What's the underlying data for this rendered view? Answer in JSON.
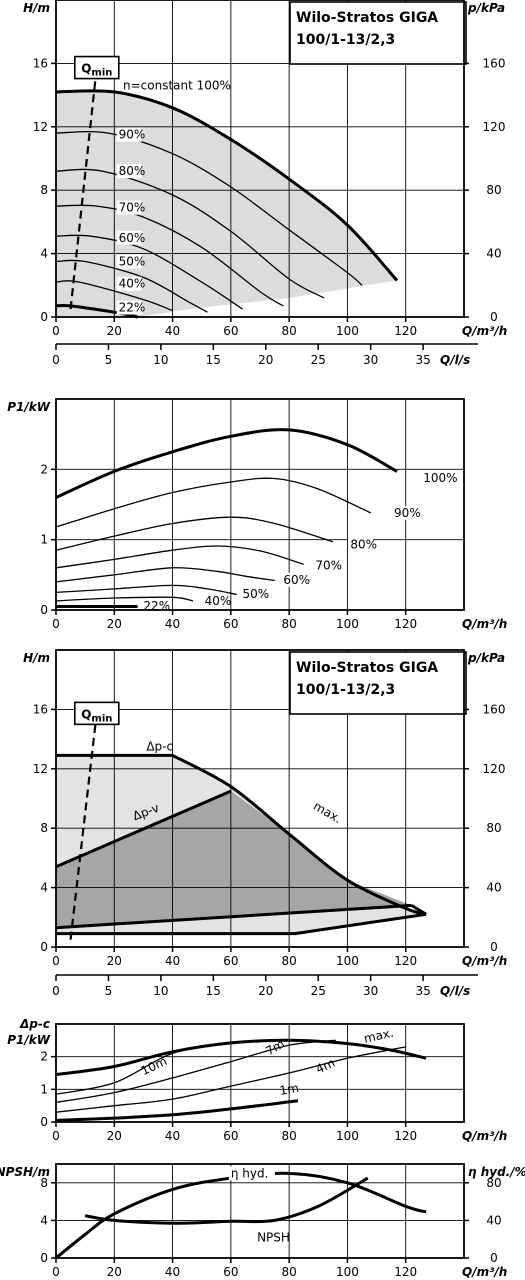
{
  "chart_data": [
    {
      "type": "line",
      "title": "Wilo-Stratos GIGA",
      "subtitle": "100/1-13/2,3",
      "xlabel": "Q/m³/h",
      "ylabel": "H/m",
      "y2label": "p/kPa",
      "xlim": [
        0,
        140
      ],
      "ylim": [
        0,
        20
      ],
      "y2lim": [
        0,
        200
      ],
      "xticks": [
        0,
        20,
        40,
        60,
        80,
        100,
        120
      ],
      "yticks": [
        0,
        4,
        8,
        12,
        16
      ],
      "y2ticks": [
        0,
        40,
        80,
        120,
        160
      ],
      "grid": true,
      "fill_region": "operating range",
      "qmin_label": "Qmin",
      "qmin_line": [
        [
          5,
          0.5
        ],
        [
          14,
          15.8
        ]
      ],
      "series": [
        {
          "name": "n=constant 100%",
          "label_at": [
            23,
            14.6
          ],
          "points": [
            [
              0,
              14.2
            ],
            [
              20,
              14.2
            ],
            [
              40,
              13.2
            ],
            [
              60,
              11.2
            ],
            [
              80,
              8.7
            ],
            [
              100,
              5.8
            ],
            [
              117,
              2.3
            ]
          ]
        },
        {
          "name": "90%",
          "label_at": [
            21.5,
            11.5
          ],
          "points": [
            [
              0,
              11.6
            ],
            [
              18,
              11.6
            ],
            [
              40,
              10.3
            ],
            [
              60,
              8.2
            ],
            [
              80,
              5.5
            ],
            [
              100,
              2.8
            ],
            [
              105,
              2.0
            ]
          ]
        },
        {
          "name": "80%",
          "label_at": [
            21.5,
            9.2
          ],
          "points": [
            [
              0,
              9.2
            ],
            [
              16,
              9.2
            ],
            [
              40,
              7.7
            ],
            [
              60,
              5.4
            ],
            [
              80,
              2.4
            ],
            [
              92,
              1.2
            ]
          ]
        },
        {
          "name": "70%",
          "label_at": [
            21.5,
            6.9
          ],
          "points": [
            [
              0,
              7.0
            ],
            [
              14,
              7.0
            ],
            [
              30,
              6.3
            ],
            [
              50,
              4.4
            ],
            [
              70,
              1.6
            ],
            [
              78,
              0.7
            ]
          ]
        },
        {
          "name": "60%",
          "label_at": [
            21.5,
            5.0
          ],
          "points": [
            [
              0,
              5.1
            ],
            [
              12,
              5.1
            ],
            [
              30,
              4.3
            ],
            [
              50,
              2.2
            ],
            [
              64,
              0.5
            ]
          ]
        },
        {
          "name": "50%",
          "label_at": [
            21.5,
            3.5
          ],
          "points": [
            [
              0,
              3.5
            ],
            [
              10,
              3.5
            ],
            [
              30,
              2.5
            ],
            [
              45,
              1.0
            ],
            [
              52,
              0.3
            ]
          ]
        },
        {
          "name": "40%",
          "label_at": [
            21.5,
            2.1
          ],
          "points": [
            [
              0,
              2.2
            ],
            [
              8,
              2.2
            ],
            [
              30,
              1.1
            ],
            [
              40,
              0.4
            ]
          ]
        },
        {
          "name": "22%",
          "label_at": [
            21.5,
            0.6
          ],
          "points": [
            [
              0,
              0.7
            ],
            [
              5,
              0.7
            ],
            [
              20,
              0.3
            ],
            [
              28,
              0.0
            ]
          ]
        }
      ]
    },
    {
      "type": "line",
      "xlabel": "Q/l/s",
      "xlim": [
        0,
        38.9
      ],
      "xticks": [
        0,
        5,
        10,
        15,
        20,
        25,
        30,
        35
      ]
    },
    {
      "type": "line",
      "ylabel": "P1/kW",
      "xlabel": "Q/m³/h",
      "xlim": [
        0,
        140
      ],
      "ylim": [
        0,
        3
      ],
      "xticks": [
        0,
        20,
        40,
        60,
        80,
        100,
        120
      ],
      "yticks": [
        0,
        1,
        2
      ],
      "grid": true,
      "series": [
        {
          "name": "100%",
          "label_at": [
            126,
            1.88
          ],
          "points": [
            [
              0,
              1.6
            ],
            [
              20,
              1.97
            ],
            [
              40,
              2.25
            ],
            [
              60,
              2.47
            ],
            [
              80,
              2.56
            ],
            [
              100,
              2.35
            ],
            [
              117,
              1.97
            ]
          ]
        },
        {
          "name": "90%",
          "label_at": [
            116,
            1.38
          ],
          "points": [
            [
              0,
              1.18
            ],
            [
              20,
              1.44
            ],
            [
              40,
              1.67
            ],
            [
              60,
              1.82
            ],
            [
              75,
              1.87
            ],
            [
              90,
              1.72
            ],
            [
              108,
              1.38
            ]
          ]
        },
        {
          "name": "80%",
          "label_at": [
            101,
            0.93
          ],
          "points": [
            [
              0,
              0.85
            ],
            [
              20,
              1.05
            ],
            [
              40,
              1.23
            ],
            [
              60,
              1.32
            ],
            [
              75,
              1.23
            ],
            [
              95,
              0.97
            ]
          ]
        },
        {
          "name": "70%",
          "label_at": [
            89,
            0.63
          ],
          "points": [
            [
              0,
              0.6
            ],
            [
              20,
              0.72
            ],
            [
              40,
              0.85
            ],
            [
              55,
              0.91
            ],
            [
              70,
              0.84
            ],
            [
              85,
              0.65
            ]
          ]
        },
        {
          "name": "60%",
          "label_at": [
            78,
            0.43
          ],
          "points": [
            [
              0,
              0.4
            ],
            [
              20,
              0.5
            ],
            [
              40,
              0.6
            ],
            [
              55,
              0.55
            ],
            [
              65,
              0.48
            ],
            [
              75,
              0.42
            ]
          ]
        },
        {
          "name": "50%",
          "label_at": [
            64,
            0.23
          ],
          "points": [
            [
              0,
              0.25
            ],
            [
              20,
              0.3
            ],
            [
              40,
              0.35
            ],
            [
              52,
              0.3
            ],
            [
              62,
              0.22
            ]
          ]
        },
        {
          "name": "40%",
          "label_at": [
            51,
            0.13
          ],
          "points": [
            [
              0,
              0.13
            ],
            [
              20,
              0.17
            ],
            [
              40,
              0.18
            ],
            [
              47,
              0.13
            ]
          ]
        },
        {
          "name": "22%",
          "label_at": [
            30,
            0.06
          ],
          "points": [
            [
              0,
              0.05
            ],
            [
              28,
              0.05
            ]
          ]
        }
      ]
    },
    {
      "type": "area",
      "title": "Wilo-Stratos GIGA",
      "subtitle": "100/1-13/2,3",
      "xlabel": "Q/m³/h",
      "ylabel": "H/m",
      "y2label": "p/kPa",
      "xlim": [
        0,
        140
      ],
      "ylim": [
        0,
        20
      ],
      "y2lim": [
        0,
        200
      ],
      "xticks": [
        0,
        20,
        40,
        60,
        80,
        100,
        120
      ],
      "yticks": [
        0,
        4,
        8,
        12,
        16
      ],
      "y2ticks": [
        0,
        40,
        80,
        120,
        160
      ],
      "grid": true,
      "regions": [
        "Δp-c range",
        "Δp-v range"
      ],
      "qmin_label": "Qmin",
      "qmin_line": [
        [
          5,
          0.5
        ],
        [
          14,
          15.8
        ]
      ],
      "curves": [
        {
          "name": "Δp-c",
          "label_at": [
            31,
            13.5
          ],
          "points": [
            [
              0,
              12.9
            ],
            [
              40,
              12.9
            ]
          ]
        },
        {
          "name": "Δp-v",
          "label_at": [
            27,
            8.8
          ],
          "points": [
            [
              0,
              5.4
            ],
            [
              60,
              10.5
            ]
          ]
        },
        {
          "name": "max.",
          "label_at": [
            88,
            9.6
          ],
          "points": [
            [
              40,
              12.9
            ],
            [
              60,
              10.8
            ],
            [
              80,
              7.6
            ],
            [
              100,
              4.5
            ],
            [
              120,
              2.6
            ],
            [
              127,
              2.2
            ]
          ]
        }
      ]
    },
    {
      "type": "line",
      "xlabel": "Q/l/s",
      "xlim": [
        0,
        38.9
      ],
      "xticks": [
        0,
        5,
        10,
        15,
        20,
        25,
        30,
        35
      ]
    },
    {
      "type": "line",
      "ylabel": "P1/kW",
      "ylabel_top": "Δp-c",
      "xlabel": "Q/m³/h",
      "xlim": [
        0,
        140
      ],
      "ylim": [
        0,
        3
      ],
      "xticks": [
        0,
        20,
        40,
        60,
        80,
        100,
        120
      ],
      "yticks": [
        0,
        1,
        2
      ],
      "grid": true,
      "series": [
        {
          "name": "max.",
          "label_at": [
            106,
            2.55
          ],
          "points": [
            [
              0,
              1.45
            ],
            [
              20,
              1.7
            ],
            [
              40,
              2.15
            ],
            [
              60,
              2.42
            ],
            [
              80,
              2.5
            ],
            [
              100,
              2.4
            ],
            [
              115,
              2.2
            ],
            [
              127,
              1.95
            ]
          ]
        },
        {
          "name": "10m",
          "label_at": [
            30,
            1.55
          ],
          "points": [
            [
              0,
              0.85
            ],
            [
              20,
              1.2
            ],
            [
              40,
              2.1
            ],
            [
              60,
              2.42
            ],
            [
              70,
              2.45
            ]
          ]
        },
        {
          "name": "7m",
          "label_at": [
            73,
            2.15
          ],
          "points": [
            [
              0,
              0.6
            ],
            [
              20,
              0.9
            ],
            [
              40,
              1.35
            ],
            [
              60,
              1.85
            ],
            [
              80,
              2.35
            ],
            [
              96,
              2.5
            ]
          ]
        },
        {
          "name": "4m",
          "label_at": [
            90,
            1.6
          ],
          "points": [
            [
              0,
              0.3
            ],
            [
              20,
              0.5
            ],
            [
              40,
              0.7
            ],
            [
              60,
              1.1
            ],
            [
              80,
              1.5
            ],
            [
              100,
              1.95
            ],
            [
              120,
              2.3
            ]
          ]
        },
        {
          "name": "1m",
          "label_at": [
            77,
            0.95
          ],
          "points": [
            [
              0,
              0.05
            ],
            [
              20,
              0.12
            ],
            [
              40,
              0.22
            ],
            [
              60,
              0.4
            ],
            [
              83,
              0.65
            ]
          ]
        }
      ]
    },
    {
      "type": "line",
      "ylabel": "NPSH/m",
      "y2label": "η hyd./%",
      "xlabel": "Q/m³/h",
      "xlim": [
        0,
        140
      ],
      "ylim": [
        0,
        10
      ],
      "y2lim": [
        0,
        100
      ],
      "xticks": [
        0,
        20,
        40,
        60,
        80,
        100,
        120
      ],
      "yticks": [
        0,
        4,
        8
      ],
      "y2ticks": [
        0,
        40,
        80
      ],
      "grid": true,
      "series": [
        {
          "name": "η hyd.",
          "label_at": [
            60,
            90
          ],
          "axis": "y2",
          "points": [
            [
              0,
              0
            ],
            [
              10,
              25
            ],
            [
              20,
              47
            ],
            [
              40,
              73
            ],
            [
              60,
              85
            ],
            [
              80,
              90
            ],
            [
              100,
              80
            ],
            [
              120,
              55
            ],
            [
              127,
              49
            ]
          ]
        },
        {
          "name": "NPSH",
          "label_at": [
            69,
            2.2
          ],
          "axis": "y",
          "points": [
            [
              10,
              4.5
            ],
            [
              20,
              4.0
            ],
            [
              40,
              3.7
            ],
            [
              60,
              3.9
            ],
            [
              75,
              4.0
            ],
            [
              90,
              5.5
            ],
            [
              107,
              8.5
            ]
          ]
        }
      ]
    }
  ]
}
